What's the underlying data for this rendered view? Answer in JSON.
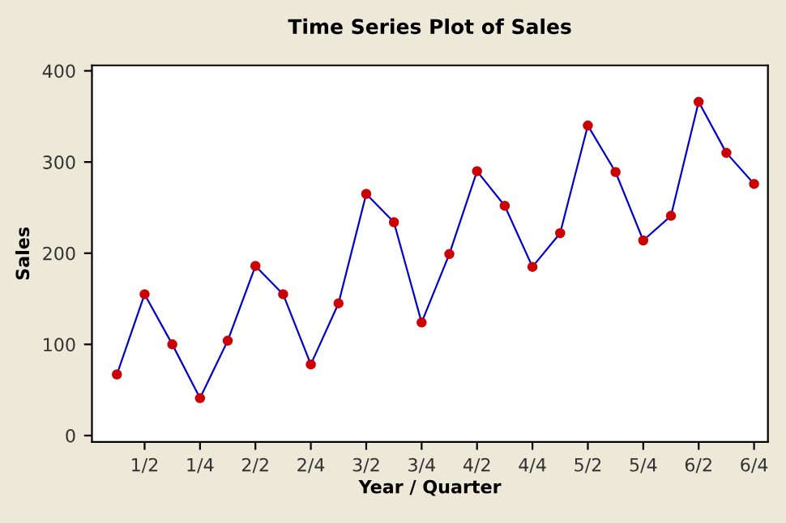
{
  "chart_data": {
    "type": "line",
    "title": "Time Series Plot of Sales",
    "xlabel": "Year / Quarter",
    "ylabel": "Sales",
    "categories": [
      null,
      "1/2",
      null,
      "1/4",
      null,
      "2/2",
      null,
      "2/4",
      null,
      "3/2",
      null,
      "3/4",
      null,
      "4/2",
      null,
      "4/4",
      null,
      "5/2",
      null,
      "5/4",
      null,
      "6/2",
      null,
      "6/4"
    ],
    "series": [
      {
        "color": "#0000cc",
        "values": [
          67,
          155,
          100,
          41,
          104,
          186,
          155,
          78,
          145,
          265,
          234,
          124,
          199,
          290,
          252,
          185,
          222,
          340,
          289,
          214,
          241,
          366,
          310,
          276
        ]
      }
    ],
    "ylim": [
      -7,
      406
    ],
    "yticks": [
      0,
      100,
      200,
      300,
      400
    ],
    "marker": "circle",
    "line_style": "solid",
    "grid": false,
    "legend": false
  }
}
